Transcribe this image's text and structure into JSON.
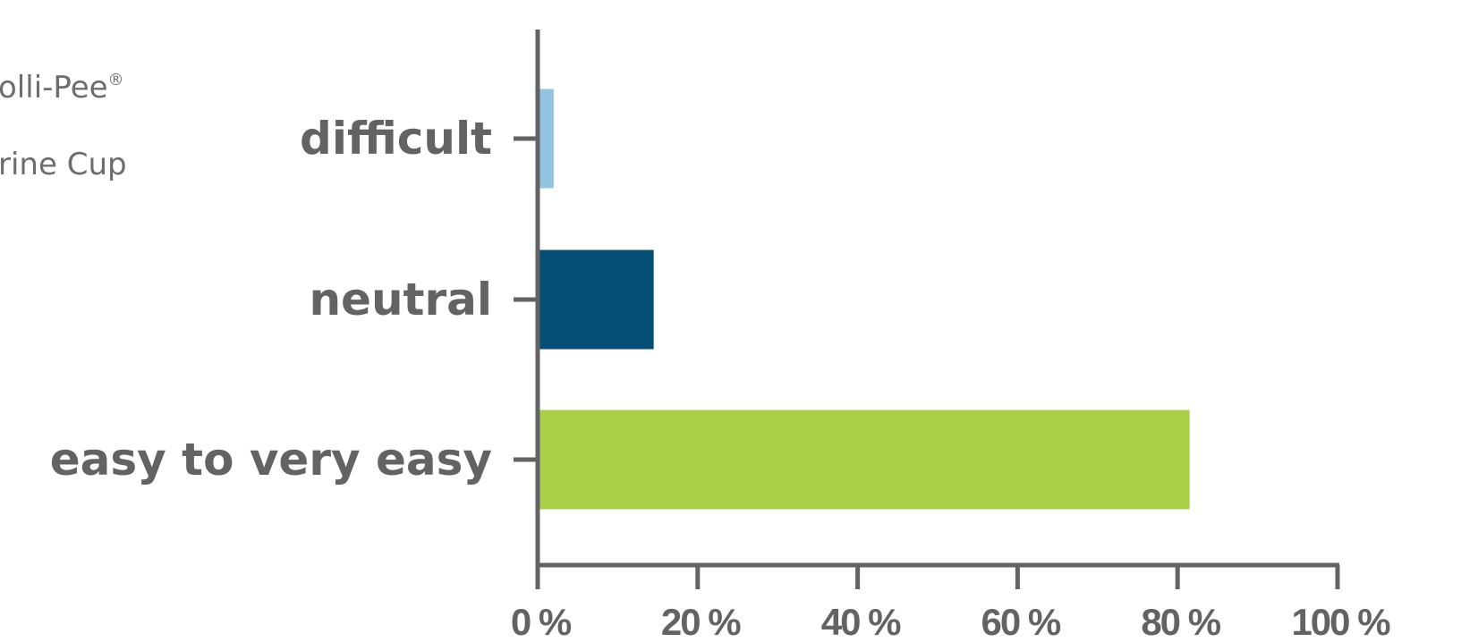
{
  "legend": {
    "item1_text": "olli-Pee",
    "item1_mark": "®",
    "item2_text": "rine Cup"
  },
  "chart_data": {
    "type": "bar",
    "orientation": "horizontal",
    "categories": [
      "difficult",
      "neutral",
      "easy to very easy"
    ],
    "values": [
      2,
      14.5,
      81.5
    ],
    "bar_colors": [
      "#93c5e1",
      "#044e75",
      "#a8cf45"
    ],
    "xlim": [
      0,
      100
    ],
    "x_ticks": [
      "0 %",
      "20 %",
      "40 %",
      "60 %",
      "80 %",
      "100 %"
    ],
    "title": "",
    "xlabel": "",
    "ylabel": "",
    "axis_color": "#636363"
  }
}
